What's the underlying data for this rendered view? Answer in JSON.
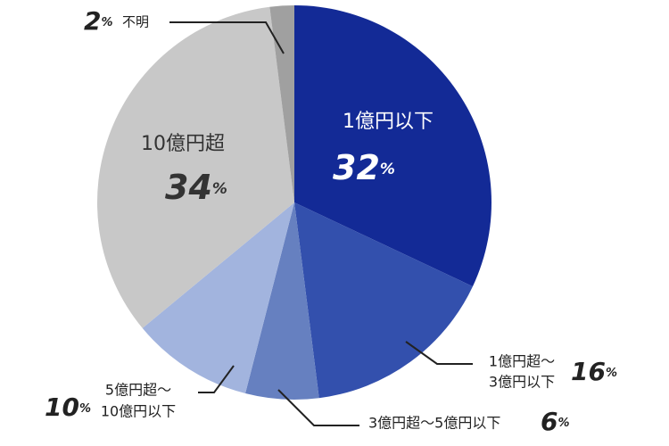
{
  "chart_data": {
    "type": "pie",
    "categories": [
      [
        "1億円以下"
      ],
      [
        "1億円超～",
        "3億円以下"
      ],
      [
        "3億円超～5億円以下"
      ],
      [
        "5億円超～",
        "10億円以下"
      ],
      [
        "10億円超"
      ],
      [
        "不明"
      ]
    ],
    "values": [
      32,
      16,
      6,
      10,
      34,
      2
    ],
    "unit": "%",
    "colors": [
      "#132a96",
      "#3350ad",
      "#6680c0",
      "#a2b4de",
      "#c8c8c8",
      "#a0a0a0"
    ]
  }
}
